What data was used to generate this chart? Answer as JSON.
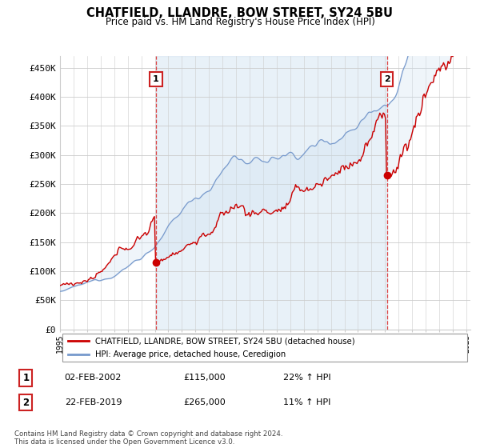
{
  "title": "CHATFIELD, LLANDRE, BOW STREET, SY24 5BU",
  "subtitle": "Price paid vs. HM Land Registry's House Price Index (HPI)",
  "ylim": [
    0,
    470000
  ],
  "yticks": [
    0,
    50000,
    100000,
    150000,
    200000,
    250000,
    300000,
    350000,
    400000,
    450000
  ],
  "ytick_labels": [
    "£0",
    "£50K",
    "£100K",
    "£150K",
    "£200K",
    "£250K",
    "£300K",
    "£350K",
    "£400K",
    "£450K"
  ],
  "xlim_start": 1995,
  "xlim_end": 2025.3,
  "grid_color": "#cccccc",
  "vline_color": "#dd4444",
  "vline_x1": 2002.09,
  "vline_x2": 2019.13,
  "marker1_x": 2002.09,
  "marker1_y": 115000,
  "marker2_x": 2019.13,
  "marker2_y": 265000,
  "red_line_color": "#cc0000",
  "blue_line_color": "#7799cc",
  "fill_color": "#cce0f0",
  "fill_alpha": 0.5,
  "dot_color": "#cc0000",
  "marker_box_edge": "#cc2222",
  "legend_property_label": "CHATFIELD, LLANDRE, BOW STREET, SY24 5BU (detached house)",
  "legend_hpi_label": "HPI: Average price, detached house, Ceredigion",
  "footer": "Contains HM Land Registry data © Crown copyright and database right 2024.\nThis data is licensed under the Open Government Licence v3.0.",
  "table_rows": [
    {
      "num": "1",
      "date": "02-FEB-2002",
      "price": "£115,000",
      "pct": "22% ↑ HPI"
    },
    {
      "num": "2",
      "date": "22-FEB-2019",
      "price": "£265,000",
      "pct": "11% ↑ HPI"
    }
  ],
  "hatch_color": "#bbbbbb"
}
